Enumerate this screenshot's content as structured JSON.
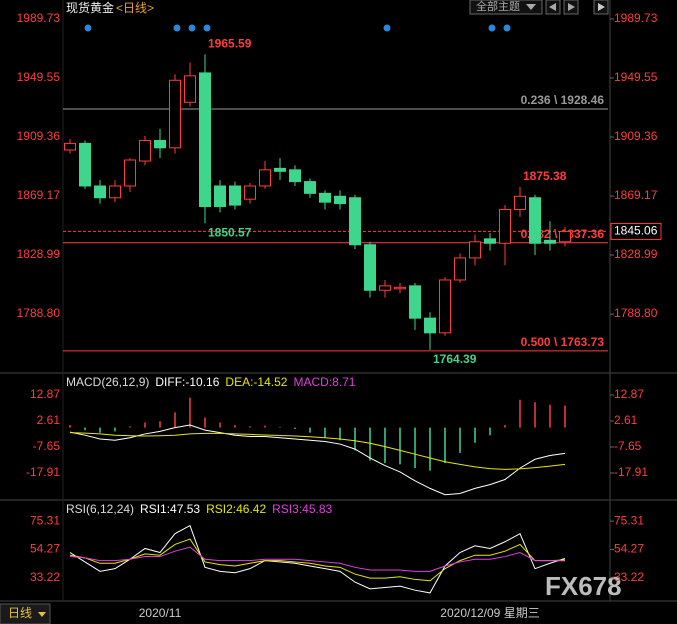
{
  "ui": {
    "theme_button": "全部主题",
    "tab": "日线",
    "watermark": "FX678"
  },
  "chart_data": [
    {
      "type": "candlestick",
      "title": "现货黄金",
      "subtitle": "<日线>",
      "categories": [
        null,
        null,
        null,
        null,
        null,
        null,
        "2020/11",
        null,
        null,
        null,
        null,
        null,
        null,
        null,
        null,
        null,
        null,
        null,
        null,
        null,
        null,
        null,
        null,
        null,
        null,
        null,
        null,
        null,
        "2020/12/09 星期三",
        null,
        null,
        null,
        null,
        null
      ],
      "open": [
        1900.5,
        1905,
        1876,
        1868,
        1876,
        1893,
        1907,
        1902,
        1933,
        1953,
        1876,
        1876,
        1867,
        1876,
        1888,
        1887,
        1879,
        1871,
        1869,
        1868,
        1836,
        1805,
        1806,
        1808,
        1786,
        1776,
        1812,
        1827,
        1840,
        1837,
        1860,
        1868,
        1839,
        1838
      ],
      "high": [
        1908,
        1907,
        1880,
        1880,
        1895,
        1910,
        1915,
        1952,
        1960,
        1965.59,
        1880,
        1879,
        1878,
        1893,
        1895,
        1890,
        1881,
        1873,
        1873,
        1870,
        1838,
        1812,
        1810,
        1810,
        1790,
        1814,
        1830,
        1843,
        1844,
        1863,
        1875.38,
        1870,
        1852,
        1848
      ],
      "low": [
        1898,
        1874,
        1864,
        1865,
        1872,
        1890,
        1895,
        1898,
        1930,
        1850.57,
        1858,
        1860,
        1864,
        1874,
        1880,
        1876,
        1868,
        1860,
        1860,
        1833,
        1800,
        1800,
        1803,
        1778,
        1764.39,
        1774,
        1810,
        1822,
        1832,
        1822,
        1855,
        1829,
        1832,
        1835
      ],
      "close": [
        1905,
        1876,
        1868,
        1876,
        1893.7,
        1907,
        1902,
        1948,
        1951,
        1862,
        1862,
        1863,
        1876,
        1887,
        1886,
        1879,
        1871,
        1865,
        1864,
        1836,
        1805,
        1808,
        1807,
        1786,
        1776,
        1812,
        1827,
        1838,
        1837,
        1860,
        1869,
        1837,
        1837,
        1845.06
      ],
      "up_color": "#ff3d3d",
      "down_color": "#3ed68c",
      "annotations": [
        1965.59,
        1850.57,
        1875.38,
        1764.39
      ],
      "levels": [
        {
          "value": 1928.46,
          "label": "0.236 \\ 1928.46",
          "color": "#9a9a9a"
        },
        {
          "value": 1837.36,
          "label": "0.382 \\ 1837.36",
          "color": "#ff3d3d"
        },
        {
          "value": 1763.73,
          "label": "0.500 \\ 1763.73",
          "color": "#ff3d3d"
        }
      ],
      "ylim": [
        1750.7,
        1997.2
      ],
      "yticks": [
        1989.73,
        1949.55,
        1909.36,
        1869.17,
        1828.99,
        {
          "value": 1788.8,
          "label": "1788.80"
        }
      ]
    },
    {
      "type": "macd",
      "title": "MACD(26,12,9)",
      "series": [
        {
          "name": "DIFF:-10.16",
          "color": "#ffffff",
          "values": [
            -1.8,
            -3,
            -4.5,
            -5,
            -4,
            -2.5,
            -1.5,
            0,
            1,
            -1,
            -2,
            -3,
            -3.5,
            -3.5,
            -4,
            -4.5,
            -5,
            -5.5,
            -6.5,
            -8.5,
            -12,
            -15,
            -17.5,
            -21,
            -24,
            -26.5,
            -26,
            -24,
            -22.5,
            -20.5,
            -16,
            -12.5,
            -11,
            -10.16
          ]
        },
        {
          "name": "DEA:-14.52",
          "color": "#e8e800",
          "values": [
            -2,
            -2.2,
            -2.5,
            -3,
            -3.2,
            -3.3,
            -3.2,
            -3,
            -2.5,
            -2.3,
            -2.3,
            -2.5,
            -2.7,
            -2.9,
            -3.1,
            -3.3,
            -3.6,
            -4,
            -4.5,
            -5.2,
            -6.2,
            -7.5,
            -9,
            -10.5,
            -12,
            -13.5,
            -14.5,
            -15.5,
            -16.2,
            -16.5,
            -16.3,
            -15.8,
            -15.2,
            -14.52
          ]
        }
      ],
      "bars": {
        "name": "MACD:8.71",
        "color": "#e040e0",
        "up_color": "#ff3d3d",
        "down_color": "#3ed68c",
        "values": [
          1,
          -1,
          -2,
          -1.5,
          0.5,
          2,
          2.5,
          6,
          11.8,
          4,
          2,
          1,
          0.5,
          0.8,
          0.3,
          -0.5,
          -2,
          -4,
          -5,
          -9,
          -13,
          -14,
          -14.5,
          -16,
          -17,
          -14,
          -10,
          -6,
          -3,
          1,
          11,
          10,
          9,
          8.71
        ]
      },
      "ylim": [
        -27.4,
        20.37
      ],
      "yticks": [
        12.87,
        2.61,
        -7.65,
        -17.91
      ]
    },
    {
      "type": "line",
      "title": "RSI(6,12,24)",
      "series": [
        {
          "name": "RSI1:47.53",
          "color": "#ffffff",
          "values": [
            52,
            45,
            38,
            40,
            47,
            55,
            52,
            66,
            72,
            41,
            38,
            37,
            40,
            46,
            45,
            44,
            42,
            40,
            38,
            30,
            25,
            26,
            27,
            24,
            22,
            42,
            52,
            57,
            55,
            60,
            66,
            40,
            44,
            47.53
          ]
        },
        {
          "name": "RSI2:46.42",
          "color": "#e8e800",
          "values": [
            50,
            48,
            44,
            44,
            47,
            51,
            50,
            58,
            62,
            45,
            43,
            42,
            44,
            46,
            46,
            45,
            44,
            42,
            41,
            36,
            33,
            33,
            34,
            32,
            31,
            40,
            46,
            50,
            50,
            53,
            58,
            46,
            46,
            46.42
          ]
        },
        {
          "name": "RSI3:45.83",
          "color": "#e040e0",
          "values": [
            49,
            48,
            46,
            46,
            47,
            49,
            49,
            53,
            56,
            47,
            46,
            46,
            46,
            47,
            47,
            47,
            46,
            45,
            44,
            41,
            39,
            39,
            39,
            38,
            38,
            42,
            45,
            47,
            47,
            49,
            52,
            46,
            46,
            45.83
          ]
        }
      ],
      "ylim": [
        18.2,
        88.8
      ],
      "yticks": [
        75.31,
        54.27,
        33.22
      ]
    }
  ]
}
